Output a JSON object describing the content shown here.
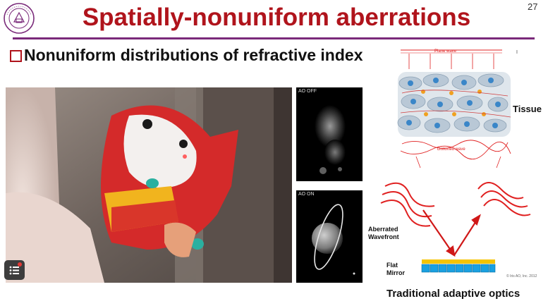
{
  "slide": {
    "title": "Spatially-nonuniform aberrations",
    "page_number": "27",
    "heading": "Nonuniform distributions of refractive index",
    "caption": "Traditional adaptive optics"
  },
  "images": {
    "ao_off_label": "AO OFF",
    "ao_on_label": "AO ON"
  },
  "diagram": {
    "plane_wave": "Plane wave",
    "tissue": "Tissue",
    "distorted_wave": "Distorted wave",
    "aberrated_wavefront_line1": "Aberrated",
    "aberrated_wavefront_line2": "Wavefront",
    "flat_mirror_line1": "Flat",
    "flat_mirror_line2": "Mirror",
    "copyright": "© Iris AO, Inc. 2012"
  },
  "colors": {
    "title": "#b0141c",
    "rule": "#7a2a7a",
    "wave": "#e02020",
    "mirror_top": "#f5c400",
    "mirror_actuators": "#1aa0e0"
  },
  "icons": [
    "university-seal-icon",
    "square-bullet-icon",
    "menu-list-icon"
  ]
}
